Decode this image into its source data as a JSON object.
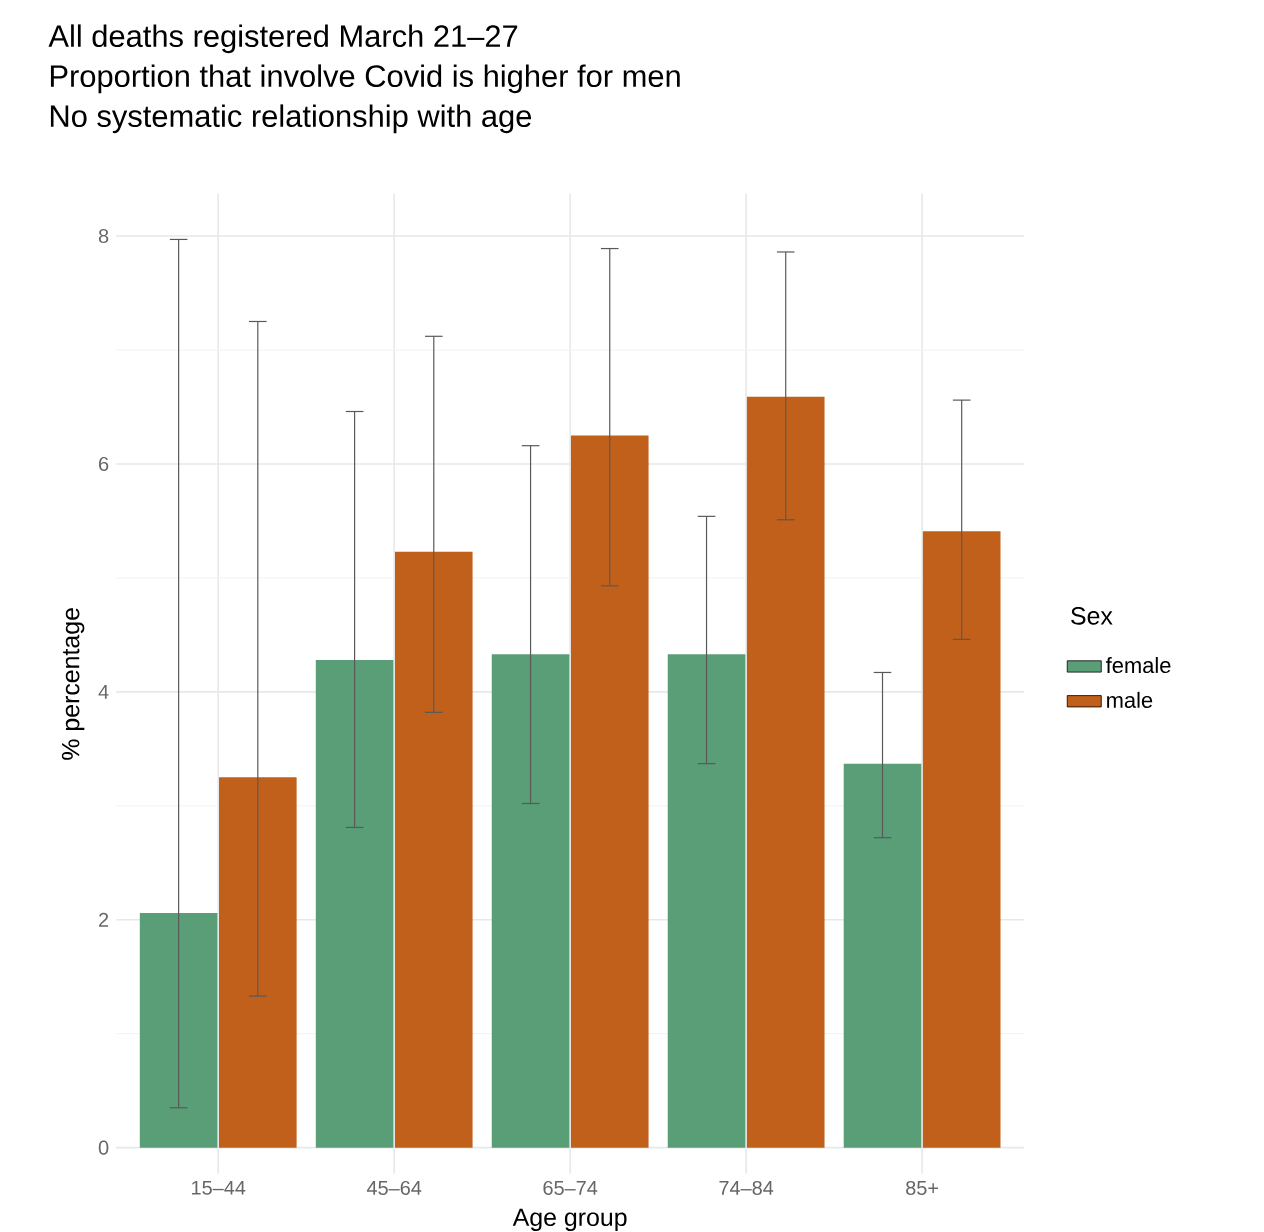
{
  "chart_data": {
    "type": "bar",
    "title": "All deaths registered March 21–27",
    "subtitle": "Proportion that involve Covid is higher for men",
    "annotations": [
      "No systematic relationship with age"
    ],
    "xlabel": "Age group",
    "ylabel": "% percentage",
    "legend_title": "Sex",
    "categories": [
      "15–44",
      "45–64",
      "65–74",
      "74–84",
      "85+"
    ],
    "series": [
      {
        "name": "female",
        "color": "#5a9e78",
        "values": [
          2.06,
          4.28,
          4.33,
          4.33,
          3.37
        ],
        "errors": [
          [
            0.35,
            7.97
          ],
          [
            2.81,
            6.46
          ],
          [
            3.02,
            6.16
          ],
          [
            3.37,
            5.54
          ],
          [
            2.72,
            4.17
          ]
        ]
      },
      {
        "name": "male",
        "color": "#c0601a",
        "values": [
          3.25,
          5.23,
          6.25,
          6.59,
          5.41
        ],
        "errors": [
          [
            1.33,
            7.25
          ],
          [
            3.82,
            7.12
          ],
          [
            4.93,
            7.89
          ],
          [
            5.51,
            7.86
          ],
          [
            4.46,
            6.56
          ]
        ]
      }
    ],
    "ylim": [
      -0.23,
      8.37
    ],
    "yticks": [
      0,
      2,
      4,
      6,
      8
    ],
    "grid": true,
    "legend": "right"
  }
}
